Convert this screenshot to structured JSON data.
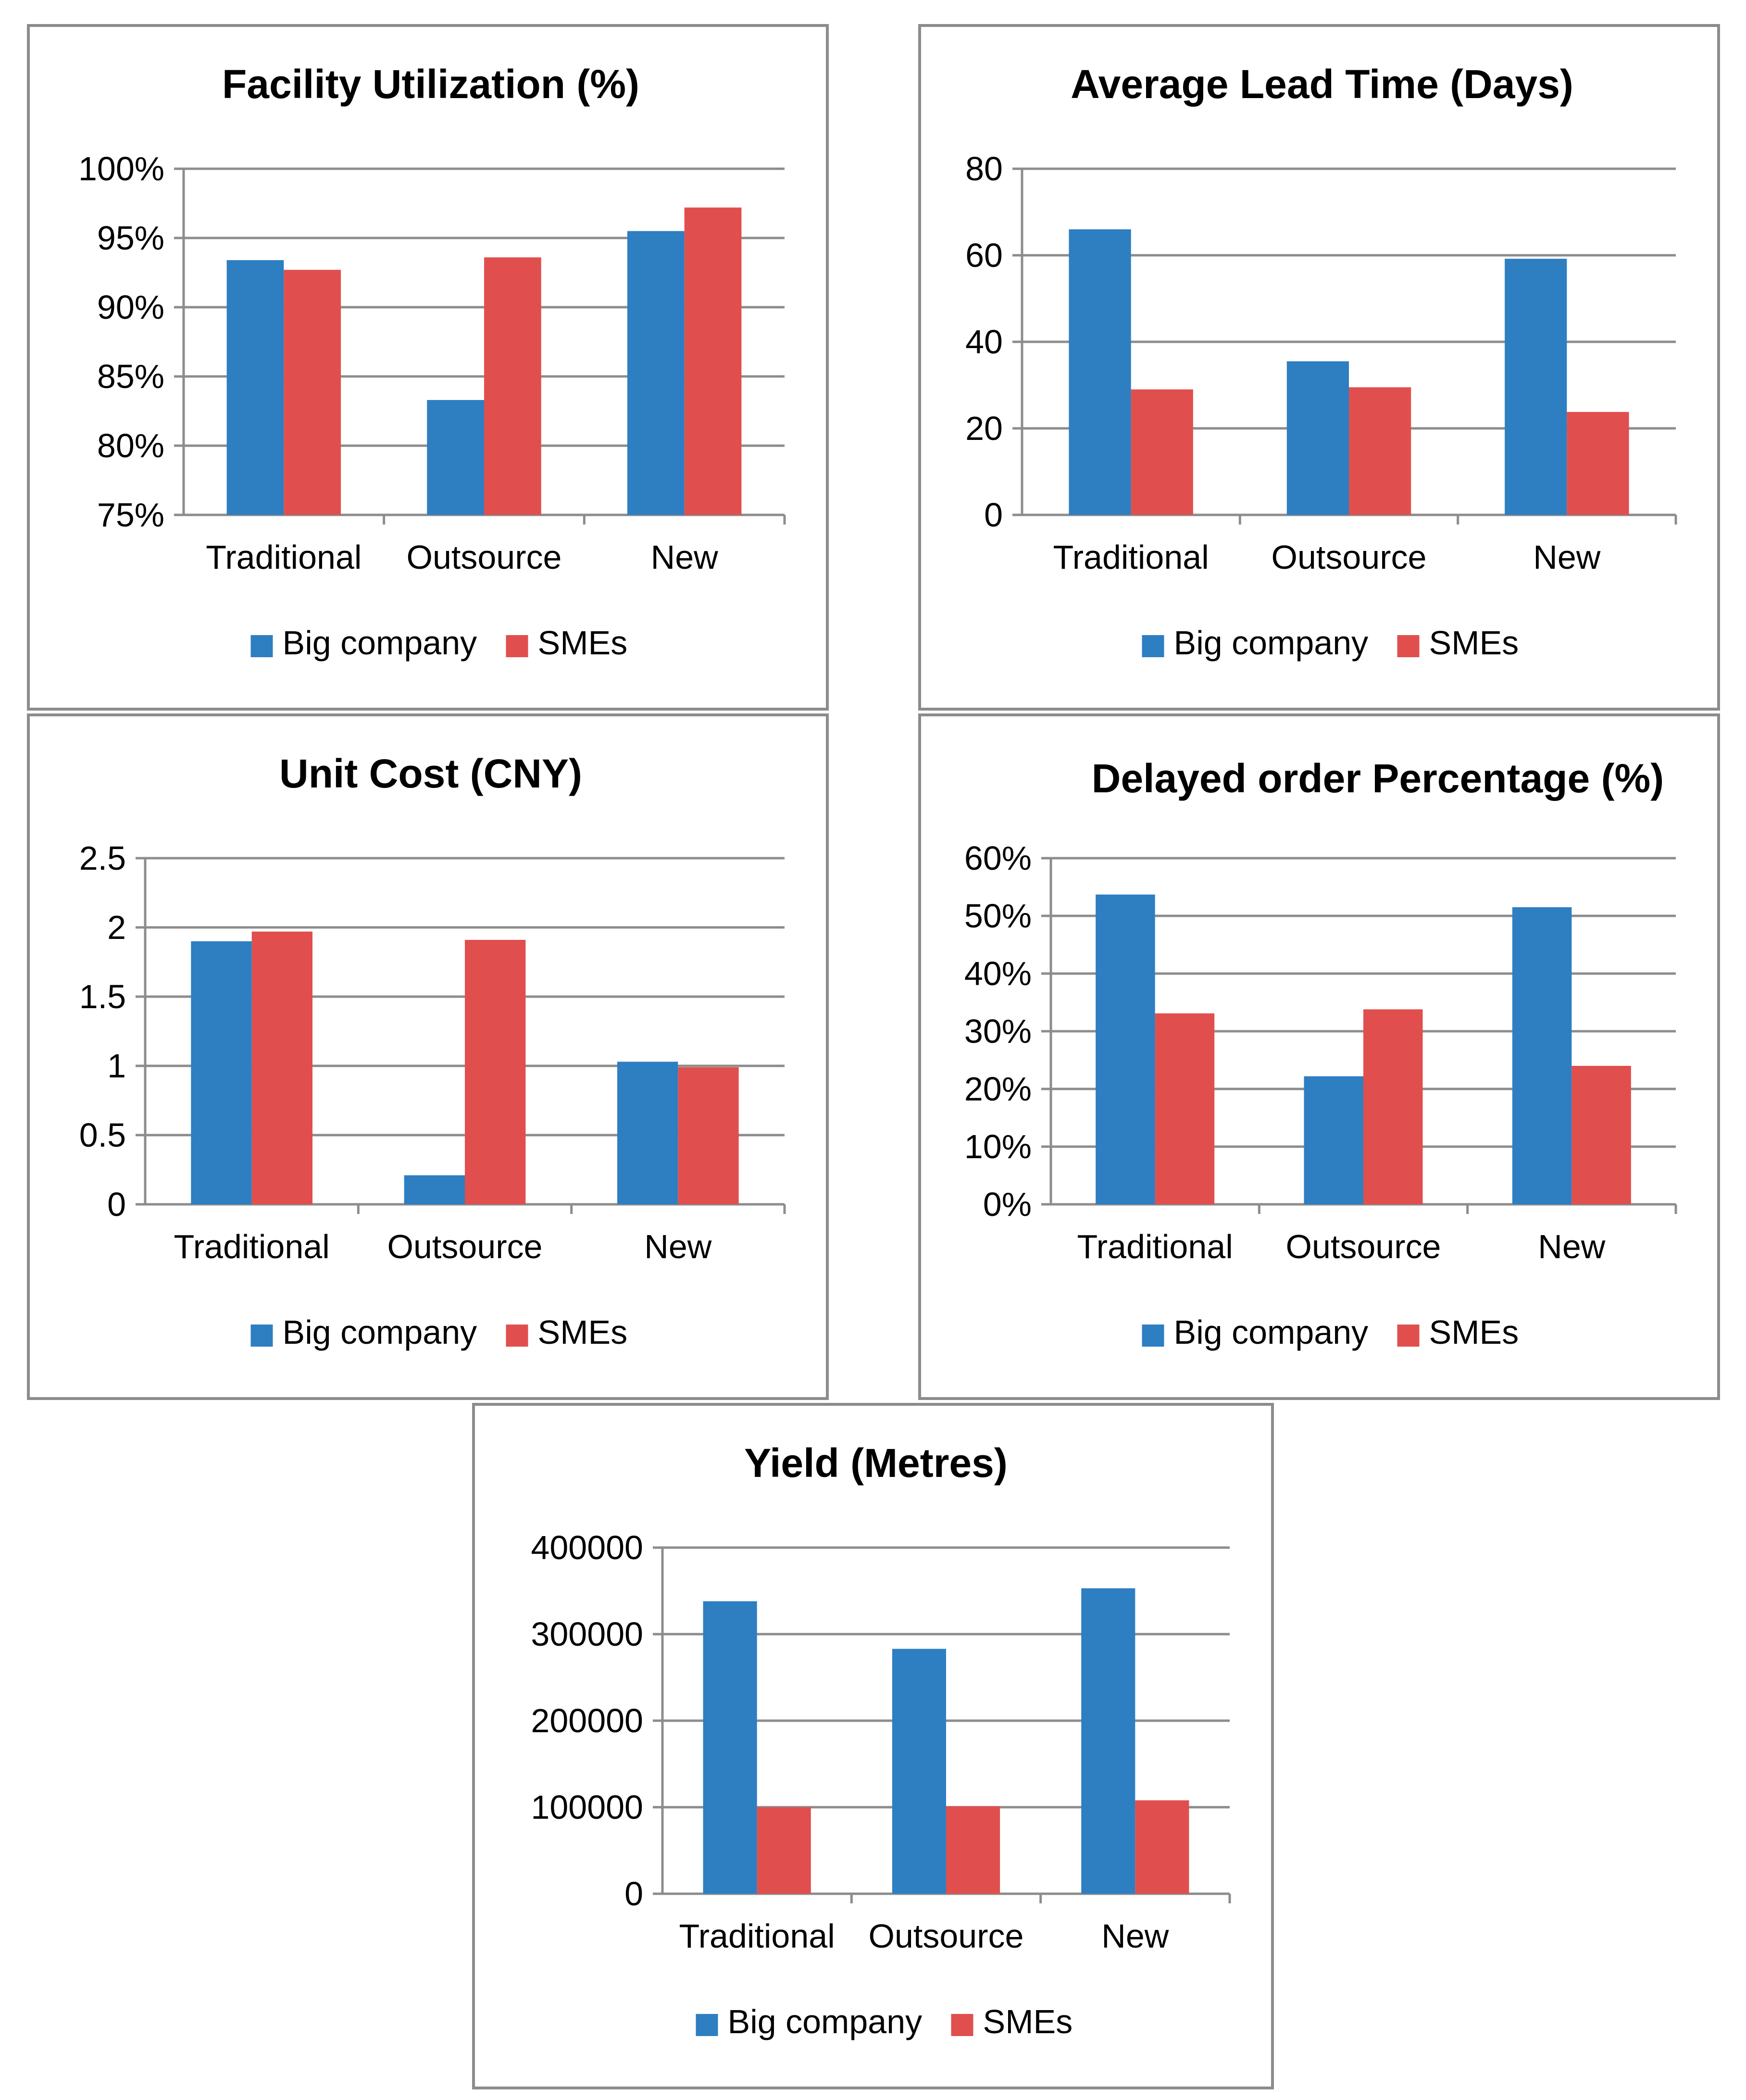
{
  "colors": {
    "big_company": "#2e7ec2",
    "smes": "#e04f4d"
  },
  "legend": {
    "series_1": "Big company",
    "series_2": "SMEs"
  },
  "chart_data": [
    {
      "type": "bar",
      "title": "Facility Utilization (%)",
      "categories": [
        "Traditional",
        "Outsource",
        "New"
      ],
      "series": [
        {
          "name": "Big company",
          "values": [
            93.4,
            83.3,
            95.5
          ]
        },
        {
          "name": "SMEs",
          "values": [
            92.7,
            93.6,
            97.2
          ]
        }
      ],
      "ylim": [
        75,
        100
      ],
      "yticks": [
        75,
        80,
        85,
        90,
        95,
        100
      ],
      "ytick_labels": [
        "75%",
        "80%",
        "85%",
        "90%",
        "95%",
        "100%"
      ],
      "xlabel": "",
      "ylabel": "",
      "legend_position": "bottom",
      "grid": true
    },
    {
      "type": "bar",
      "title": "Average Lead Time (Days)",
      "categories": [
        "Traditional",
        "Outsource",
        "New"
      ],
      "series": [
        {
          "name": "Big company",
          "values": [
            66,
            35.5,
            59.2
          ]
        },
        {
          "name": "SMEs",
          "values": [
            29,
            29.5,
            23.8
          ]
        }
      ],
      "ylim": [
        0,
        80
      ],
      "yticks": [
        0,
        20,
        40,
        60,
        80
      ],
      "ytick_labels": [
        "0",
        "20",
        "40",
        "60",
        "80"
      ],
      "xlabel": "",
      "ylabel": "",
      "legend_position": "bottom",
      "grid": true
    },
    {
      "type": "bar",
      "title": "Unit Cost (CNY)",
      "categories": [
        "Traditional",
        "Outsource",
        "New"
      ],
      "series": [
        {
          "name": "Big company",
          "values": [
            1.9,
            0.21,
            1.03
          ]
        },
        {
          "name": "SMEs",
          "values": [
            1.97,
            1.91,
            0.99
          ]
        }
      ],
      "ylim": [
        0,
        2.5
      ],
      "yticks": [
        0,
        0.5,
        1,
        1.5,
        2,
        2.5
      ],
      "ytick_labels": [
        "0",
        "0.5",
        "1",
        "1.5",
        "2",
        "2.5"
      ],
      "xlabel": "",
      "ylabel": "",
      "legend_position": "bottom",
      "grid": true
    },
    {
      "type": "bar",
      "title": "Delayed order Percentage (%)",
      "categories": [
        "Traditional",
        "Outsource",
        "New"
      ],
      "series": [
        {
          "name": "Big company",
          "values": [
            53.7,
            22.2,
            51.5
          ]
        },
        {
          "name": "SMEs",
          "values": [
            33.1,
            33.8,
            24.0
          ]
        }
      ],
      "ylim": [
        0,
        60
      ],
      "yticks": [
        0,
        10,
        20,
        30,
        40,
        50,
        60
      ],
      "ytick_labels": [
        "0%",
        "10%",
        "20%",
        "30%",
        "40%",
        "50%",
        "60%"
      ],
      "xlabel": "",
      "ylabel": "",
      "legend_position": "bottom",
      "grid": true
    },
    {
      "type": "bar",
      "title": "Yield (Metres)",
      "categories": [
        "Traditional",
        "Outsource",
        "New"
      ],
      "series": [
        {
          "name": "Big company",
          "values": [
            338000,
            283000,
            353000
          ]
        },
        {
          "name": "SMEs",
          "values": [
            100000,
            101000,
            108000
          ]
        }
      ],
      "ylim": [
        0,
        400000
      ],
      "yticks": [
        0,
        100000,
        200000,
        300000,
        400000
      ],
      "ytick_labels": [
        "0",
        "100000",
        "200000",
        "300000",
        "400000"
      ],
      "xlabel": "",
      "ylabel": "",
      "legend_position": "bottom",
      "grid": true
    }
  ]
}
